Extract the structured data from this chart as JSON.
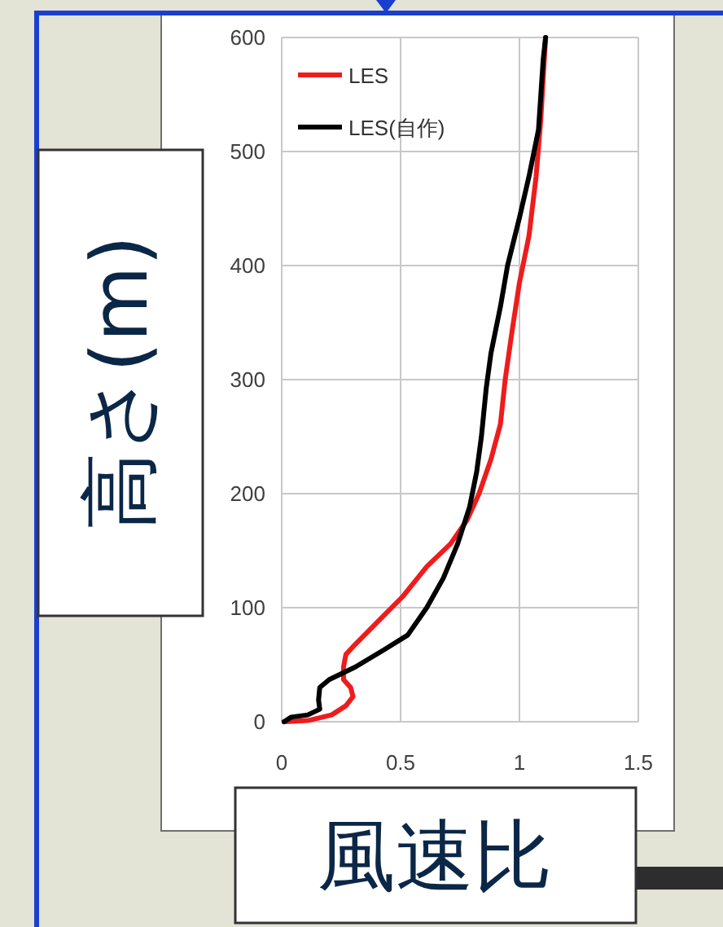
{
  "chart_data": {
    "type": "line",
    "xlabel": "風速比",
    "ylabel": "高さ(m)",
    "xlim": [
      0,
      1.5
    ],
    "xticks": [
      0,
      0.5,
      1,
      1.5
    ],
    "ylim": [
      0,
      600
    ],
    "yticks": [
      0,
      100,
      200,
      300,
      400,
      500,
      600
    ],
    "grid": true,
    "legend": "top left",
    "series": [
      {
        "name": "LES",
        "color": "#ee1c1c",
        "x": [
          0.01,
          0.11,
          0.21,
          0.27,
          0.3,
          0.29,
          0.26,
          0.26,
          0.27,
          0.31,
          0.41,
          0.51,
          0.61,
          0.71,
          0.78,
          0.83,
          0.88,
          0.92,
          0.94,
          0.97,
          1.0,
          1.04,
          1.07,
          1.09,
          1.11
        ],
        "values": [
          0,
          1,
          6,
          14,
          22,
          30,
          37,
          48,
          59,
          68,
          89,
          110,
          136,
          156,
          177,
          200,
          230,
          261,
          300,
          344,
          385,
          426,
          478,
          529,
          600
        ]
      },
      {
        "name": "LES(自作)",
        "color": "#000000",
        "x": [
          0.01,
          0.04,
          0.11,
          0.16,
          0.155,
          0.16,
          0.2,
          0.31,
          0.43,
          0.53,
          0.61,
          0.68,
          0.74,
          0.79,
          0.82,
          0.84,
          0.86,
          0.88,
          0.92,
          0.95,
          1.0,
          1.04,
          1.08,
          1.1,
          1.11
        ],
        "values": [
          0,
          4,
          6,
          11,
          19,
          30,
          37,
          48,
          63,
          76,
          100,
          126,
          156,
          188,
          219,
          250,
          292,
          323,
          364,
          400,
          442,
          478,
          519,
          581,
          600
        ]
      }
    ]
  }
}
